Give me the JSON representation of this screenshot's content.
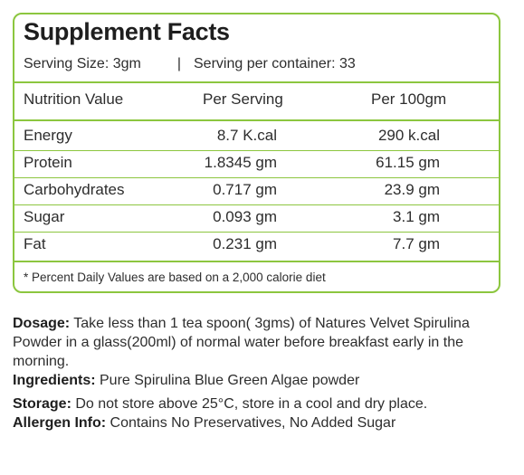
{
  "title": "Supplement Facts",
  "serving": {
    "size": "Serving Size: 3gm",
    "separator": "|",
    "per_container": "Serving per container: 33"
  },
  "table": {
    "headers": [
      "Nutrition Value",
      "Per Serving",
      "Per 100gm"
    ],
    "rows": [
      [
        "Energy",
        "8.7 K.cal",
        "290 k.cal"
      ],
      [
        "Protein",
        "1.8345 gm",
        "61.15 gm"
      ],
      [
        "Carbohydrates",
        "0.717 gm",
        "23.9 gm"
      ],
      [
        "Sugar",
        "0.093 gm",
        "3.1 gm"
      ],
      [
        "Fat",
        "0.231 gm",
        "7.7 gm"
      ]
    ]
  },
  "footnote": "* Percent Daily Values are based on a 2,000 calorie diet",
  "info": {
    "dosage_label": "Dosage:",
    "dosage_text": " Take less than 1 tea spoon( 3gms) of Natures Velvet Spirulina Powder in a glass(200ml) of normal water before breakfast early in the morning.",
    "ingredients_label": "Ingredients:",
    "ingredients_text": " Pure Spirulina Blue Green Algae powder",
    "storage_label": "Storage:",
    "storage_text": " Do not store above 25°C, store in a cool and dry place.",
    "allergen_label": "Allergen Info:",
    "allergen_text": " Contains No Preservatives, No Added Sugar"
  },
  "colors": {
    "border": "#8cc63f",
    "text": "#2d2d2d"
  }
}
